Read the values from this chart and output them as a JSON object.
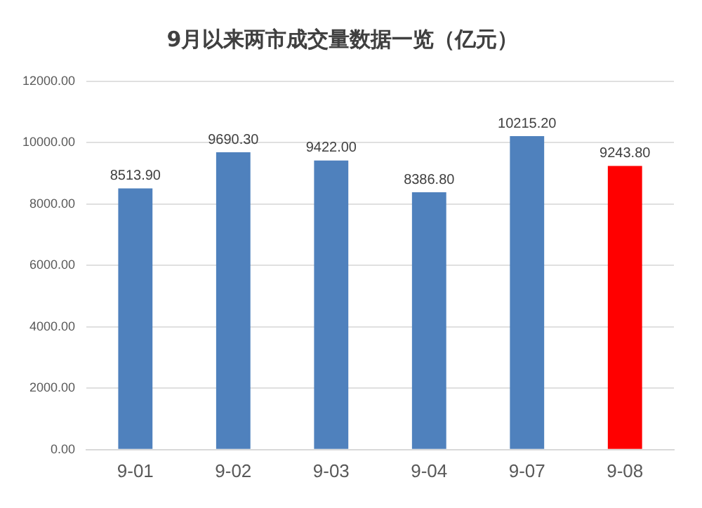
{
  "chart_data": {
    "type": "bar",
    "title": "9月以来两市成交量数据一览（亿元）",
    "categories": [
      "9-01",
      "9-02",
      "9-03",
      "9-04",
      "9-07",
      "9-08"
    ],
    "values": [
      8513.9,
      9690.3,
      9422.0,
      8386.8,
      10215.2,
      9243.8
    ],
    "colors": [
      "#4f81bd",
      "#4f81bd",
      "#4f81bd",
      "#4f81bd",
      "#4f81bd",
      "#ff0000"
    ],
    "value_labels": [
      "8513.90",
      "9690.30",
      "9422.00",
      "8386.80",
      "10215.20",
      "9243.80"
    ],
    "ylim": [
      0,
      12000
    ],
    "yticks": [
      {
        "value": 0,
        "label": "0.00"
      },
      {
        "value": 2000,
        "label": "2000.00"
      },
      {
        "value": 4000,
        "label": "4000.00"
      },
      {
        "value": 6000,
        "label": "6000.00"
      },
      {
        "value": 8000,
        "label": "8000.00"
      },
      {
        "value": 10000,
        "label": "10000.00"
      },
      {
        "value": 12000,
        "label": "12000.00"
      }
    ],
    "grid": "y"
  }
}
